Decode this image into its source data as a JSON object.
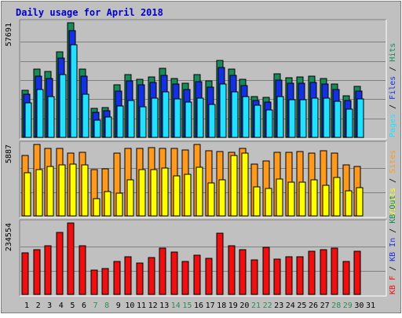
{
  "chart_data": [
    {
      "type": "bar",
      "title": "Daily usage for April 2018",
      "categories": [
        "1",
        "2",
        "3",
        "4",
        "5",
        "6",
        "7",
        "8",
        "9",
        "10",
        "11",
        "12",
        "13",
        "14",
        "15",
        "16",
        "17",
        "18",
        "19",
        "20",
        "21",
        "22",
        "23",
        "24",
        "25",
        "26",
        "27",
        "28",
        "29",
        "30",
        "31"
      ],
      "weekend_days": [
        "7",
        "8",
        "14",
        "15",
        "21",
        "22",
        "28",
        "29"
      ],
      "ymax_label": "57691",
      "ylim": [
        0,
        57691
      ],
      "right_labels": [
        "Pages",
        "Files",
        "Hits"
      ],
      "series": [
        {
          "name": "Hits",
          "color": "#1b8a5a",
          "values": [
            23800,
            34500,
            33200,
            43000,
            57691,
            34300,
            14500,
            15100,
            26600,
            31500,
            29300,
            30400,
            34600,
            29800,
            27200,
            31500,
            28500,
            38900,
            34200,
            29200,
            20600,
            20200,
            31900,
            30100,
            30400,
            30700,
            29800,
            26900,
            20800,
            25700,
            0
          ]
        },
        {
          "name": "Files",
          "color": "#1530e0",
          "values": [
            21800,
            30900,
            29700,
            39800,
            53800,
            30900,
            12800,
            13600,
            23500,
            28300,
            26300,
            27600,
            31300,
            26900,
            24300,
            28200,
            25200,
            35300,
            31200,
            26200,
            18500,
            17900,
            28800,
            27100,
            27200,
            27800,
            26900,
            24100,
            18600,
            23200,
            0
          ]
        },
        {
          "name": "Pages",
          "color": "#22e0ff",
          "values": [
            17500,
            24100,
            20600,
            31800,
            46500,
            21600,
            8500,
            10200,
            15800,
            18600,
            15500,
            19800,
            22800,
            19400,
            17700,
            19800,
            16500,
            27000,
            22800,
            20400,
            16300,
            13900,
            20700,
            19000,
            18900,
            19700,
            19700,
            18300,
            14200,
            19200,
            0
          ]
        }
      ]
    },
    {
      "type": "bar",
      "ymax_label": "5887",
      "ylim": [
        0,
        5887
      ],
      "right_labels": [
        "Visits",
        "Sites"
      ],
      "series": [
        {
          "name": "Sites",
          "color": "#ff9a1e",
          "values": [
            5000,
            5887,
            5550,
            5550,
            5150,
            5250,
            3800,
            3850,
            5150,
            5550,
            5550,
            5600,
            5550,
            5550,
            5450,
            5887,
            5350,
            5300,
            5250,
            5550,
            4250,
            4500,
            5250,
            5250,
            5300,
            5150,
            5400,
            5200,
            4200,
            4050,
            0
          ]
        },
        {
          "name": "Visits",
          "color": "#ffff00",
          "values": [
            3550,
            3800,
            4050,
            4200,
            4300,
            4200,
            1450,
            2000,
            1900,
            3000,
            3800,
            3800,
            3950,
            3300,
            3400,
            4000,
            2700,
            3000,
            4950,
            5150,
            2400,
            2250,
            3050,
            2800,
            2800,
            3000,
            2550,
            3200,
            2100,
            2300,
            0
          ]
        }
      ]
    },
    {
      "type": "bar",
      "ymax_label": "234554",
      "ylim": [
        0,
        234554
      ],
      "right_labels": [
        "KB F",
        "KB In",
        "KB Out"
      ],
      "series": [
        {
          "name": "KB F",
          "color": "#ee1010",
          "values": [
            137000,
            148000,
            160000,
            204000,
            234554,
            159000,
            79000,
            85000,
            108000,
            125000,
            104000,
            122000,
            152000,
            138000,
            109000,
            128000,
            118000,
            202000,
            160000,
            146000,
            114000,
            154000,
            115000,
            123000,
            123000,
            141000,
            146000,
            153000,
            107000,
            143000,
            0
          ]
        }
      ]
    }
  ],
  "colors": {
    "weekday_label": "#008000",
    "weekend_label": "#2e8b57",
    "title": "#0000cc",
    "panel_bg": "#c0c0c0",
    "frame_bg": "#c0c0c0",
    "grid": "#808080",
    "inset_dark": "#808080",
    "inset_light": "#ffffff"
  }
}
